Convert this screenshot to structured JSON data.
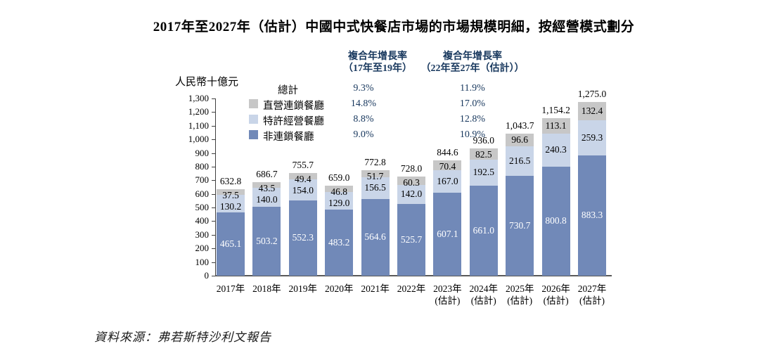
{
  "title": "2017年至2027年（估計）中國中式快餐店市場的市場規模明細，按經營模式劃分",
  "unit_label": "人民幣十億元",
  "source": "資料來源：弗若斯特沙利文報告",
  "cagr_table": {
    "col1_header_line1": "複合年增長率",
    "col1_header_line2": "（17年至19年）",
    "col2_header_line1": "複合年增長率",
    "col2_header_line2": "（22年至27年（估計））",
    "rows": [
      {
        "label": "總計",
        "swatch": null,
        "cagr_17_19": "9.3%",
        "cagr_22_27": "11.9%"
      },
      {
        "label": "直營連鎖餐廳",
        "swatch": "#C7C7C7",
        "cagr_17_19": "14.8%",
        "cagr_22_27": "17.0%"
      },
      {
        "label": "特許經營餐廳",
        "swatch": "#C9D5E8",
        "cagr_17_19": "8.8%",
        "cagr_22_27": "12.8%"
      },
      {
        "label": "非連鎖餐廳",
        "swatch": "#7189B8",
        "cagr_17_19": "9.0%",
        "cagr_22_27": "10.9%"
      }
    ]
  },
  "chart_data": {
    "type": "bar",
    "stacked": true,
    "title": "2017年至2027年（估計）中國中式快餐店市場的市場規模明細，按經營模式劃分",
    "ylabel": "人民幣十億元",
    "ylim": [
      0,
      1300
    ],
    "ytick_step": 100,
    "grid": false,
    "legend_position": "top-left",
    "categories": [
      {
        "label": "2017年",
        "sublabel": ""
      },
      {
        "label": "2018年",
        "sublabel": ""
      },
      {
        "label": "2019年",
        "sublabel": ""
      },
      {
        "label": "2020年",
        "sublabel": ""
      },
      {
        "label": "2021年",
        "sublabel": ""
      },
      {
        "label": "2022年",
        "sublabel": ""
      },
      {
        "label": "2023年",
        "sublabel": "(估計)"
      },
      {
        "label": "2024年",
        "sublabel": "(估計)"
      },
      {
        "label": "2025年",
        "sublabel": "(估計)"
      },
      {
        "label": "2026年",
        "sublabel": "(估計)"
      },
      {
        "label": "2027年",
        "sublabel": "(估計)"
      }
    ],
    "series": [
      {
        "name": "非連鎖餐廳",
        "slug": "non-chain",
        "color": "#7189B8",
        "label_color": "#FFFFFF",
        "values": [
          465.1,
          503.2,
          552.3,
          483.2,
          564.6,
          525.7,
          607.1,
          661.0,
          730.7,
          800.8,
          883.3
        ]
      },
      {
        "name": "特許經營餐廳",
        "slug": "franchised",
        "color": "#C9D5E8",
        "label_color": "#000000",
        "values": [
          130.2,
          140.0,
          154.0,
          129.0,
          156.5,
          142.0,
          167.0,
          192.5,
          216.5,
          240.3,
          259.3
        ]
      },
      {
        "name": "直營連鎖餐廳",
        "slug": "directly-operated",
        "color": "#C7C7C7",
        "label_color": "#000000",
        "values": [
          37.5,
          43.5,
          49.4,
          46.8,
          51.7,
          60.3,
          70.4,
          82.5,
          96.6,
          113.1,
          132.4
        ]
      }
    ],
    "totals": [
      "632.8",
      "686.7",
      "755.7",
      "659.0",
      "772.8",
      "728.0",
      "844.6",
      "936.0",
      "1,043.7",
      "1,154.2",
      "1,275.0"
    ]
  }
}
